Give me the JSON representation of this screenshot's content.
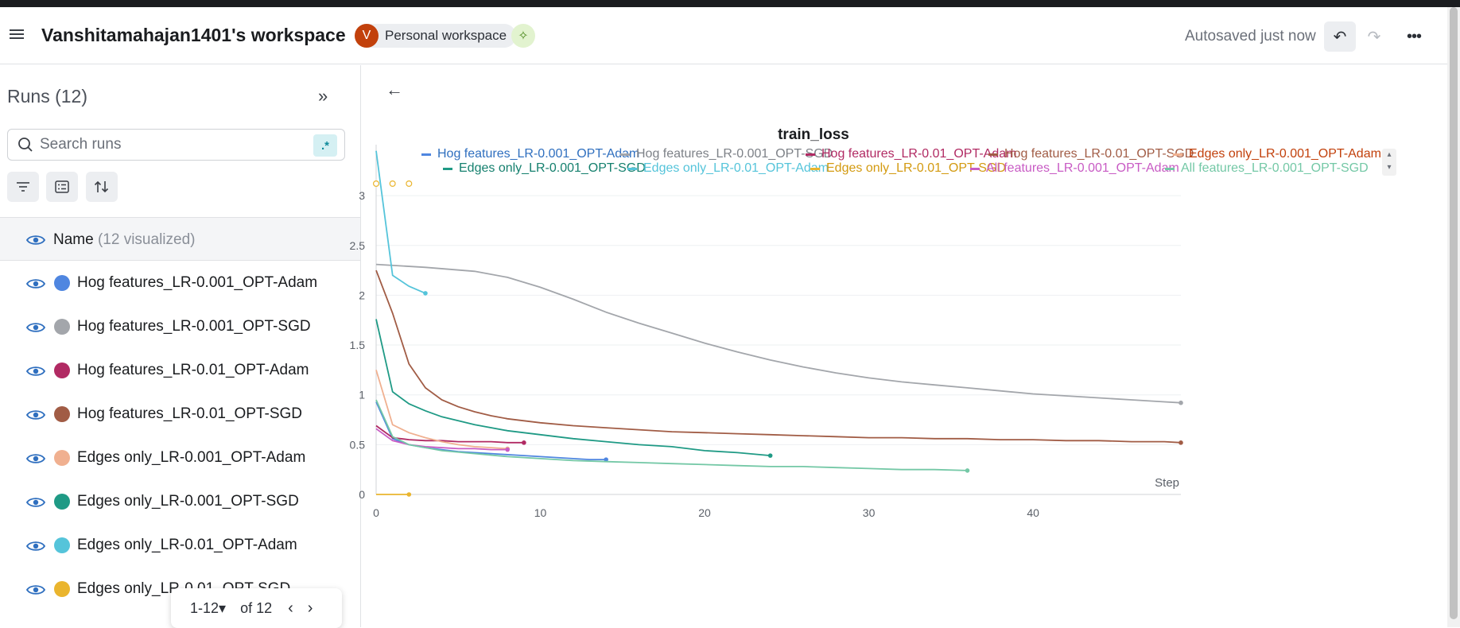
{
  "header": {
    "workspace_title": "Vanshitamahajan1401's workspace",
    "avatar_letter": "V",
    "workspace_chip": "Personal workspace",
    "autosave_status": "Autosaved just now",
    "accent_color": "#c2410c"
  },
  "sidebar": {
    "runs_title": "Runs (12)",
    "search_placeholder": "Search runs",
    "regex_label": ".*",
    "name_column": "Name",
    "name_visualized": "(12 visualized)",
    "runs": [
      {
        "name": "Hog features_LR-0.001_OPT-Adam",
        "color": "#4f86e0"
      },
      {
        "name": "Hog features_LR-0.001_OPT-SGD",
        "color": "#a3a6ab"
      },
      {
        "name": "Hog features_LR-0.01_OPT-Adam",
        "color": "#b12a63"
      },
      {
        "name": "Hog features_LR-0.01_OPT-SGD",
        "color": "#a15c45"
      },
      {
        "name": "Edges only_LR-0.001_OPT-Adam",
        "color": "#f0b090"
      },
      {
        "name": "Edges only_LR-0.001_OPT-SGD",
        "color": "#1f9a85"
      },
      {
        "name": "Edges only_LR-0.01_OPT-Adam",
        "color": "#55c4da"
      },
      {
        "name": "Edges only_LR-0.01_OPT-SGD",
        "color": "#eab52e"
      }
    ],
    "pager": {
      "range": "1-12",
      "of": "of 12"
    }
  },
  "chart_data": {
    "type": "line",
    "title": "train_loss",
    "xlabel": "Step",
    "ylabel": "",
    "xlim": [
      0,
      49
    ],
    "ylim": [
      0,
      3.4
    ],
    "x_ticks": [
      0,
      10,
      20,
      30,
      40
    ],
    "y_ticks": [
      0,
      0.5,
      1,
      1.5,
      2,
      2.5,
      3
    ],
    "grid": true,
    "legend_position": "top",
    "series": [
      {
        "name": "Hog features_LR-0.001_OPT-Adam",
        "color": "#4f86e0",
        "x": [
          0,
          1,
          2,
          3,
          4,
          5,
          6,
          7,
          8,
          9,
          10,
          11,
          12,
          13,
          14
        ],
        "y": [
          0.93,
          0.56,
          0.5,
          0.47,
          0.45,
          0.43,
          0.42,
          0.41,
          0.4,
          0.39,
          0.38,
          0.37,
          0.36,
          0.35,
          0.35
        ]
      },
      {
        "name": "Hog features_LR-0.001_OPT-SGD",
        "color": "#a3a6ab",
        "x": [
          0,
          3,
          6,
          8,
          10,
          12,
          14,
          16,
          18,
          20,
          22,
          24,
          26,
          28,
          30,
          32,
          34,
          36,
          38,
          40,
          42,
          44,
          46,
          48,
          49
        ],
        "y": [
          2.31,
          2.28,
          2.24,
          2.18,
          2.08,
          1.96,
          1.83,
          1.72,
          1.62,
          1.52,
          1.43,
          1.35,
          1.28,
          1.22,
          1.17,
          1.13,
          1.1,
          1.07,
          1.04,
          1.01,
          0.99,
          0.97,
          0.95,
          0.93,
          0.92
        ]
      },
      {
        "name": "Hog features_LR-0.01_OPT-Adam",
        "color": "#b12a63",
        "x": [
          0,
          1,
          2,
          3,
          4,
          5,
          6,
          7,
          8,
          9
        ],
        "y": [
          0.69,
          0.57,
          0.55,
          0.54,
          0.54,
          0.53,
          0.53,
          0.53,
          0.52,
          0.52
        ]
      },
      {
        "name": "Hog features_LR-0.01_OPT-SGD",
        "color": "#a15c45",
        "x": [
          0,
          1,
          2,
          3,
          4,
          5,
          6,
          7,
          8,
          9,
          10,
          12,
          14,
          16,
          18,
          20,
          22,
          24,
          26,
          28,
          30,
          32,
          34,
          36,
          38,
          40,
          42,
          44,
          46,
          48,
          49
        ],
        "y": [
          2.25,
          1.82,
          1.31,
          1.07,
          0.95,
          0.88,
          0.83,
          0.79,
          0.76,
          0.74,
          0.72,
          0.69,
          0.67,
          0.65,
          0.63,
          0.62,
          0.61,
          0.6,
          0.59,
          0.58,
          0.57,
          0.57,
          0.56,
          0.56,
          0.55,
          0.55,
          0.54,
          0.54,
          0.53,
          0.53,
          0.52
        ]
      },
      {
        "name": "Edges only_LR-0.001_OPT-Adam",
        "color": "#f0b090",
        "x": [
          0,
          1,
          2,
          3,
          4,
          5,
          6,
          7,
          8
        ],
        "y": [
          1.25,
          0.7,
          0.62,
          0.57,
          0.53,
          0.5,
          0.48,
          0.47,
          0.46
        ]
      },
      {
        "name": "Edges only_LR-0.001_OPT-SGD",
        "color": "#1f9a85",
        "x": [
          0,
          1,
          2,
          3,
          4,
          5,
          6,
          8,
          10,
          12,
          14,
          16,
          18,
          20,
          22,
          24
        ],
        "y": [
          1.76,
          1.03,
          0.91,
          0.84,
          0.78,
          0.74,
          0.7,
          0.64,
          0.6,
          0.56,
          0.53,
          0.5,
          0.48,
          0.44,
          0.42,
          0.39
        ]
      },
      {
        "name": "Edges only_LR-0.01_OPT-Adam",
        "color": "#55c4da",
        "x": [
          0,
          1,
          2,
          3
        ],
        "y": [
          3.45,
          2.2,
          2.09,
          2.02
        ]
      },
      {
        "name": "Edges only_LR-0.01_OPT-SGD",
        "color": "#eab52e",
        "x": [
          0,
          1,
          2
        ],
        "y": [
          0,
          0,
          0
        ]
      },
      {
        "name": "All features_LR-0.001_OPT-Adam",
        "color": "#c85bc4",
        "x": [
          0,
          1,
          2,
          3,
          4,
          5,
          6,
          7,
          8
        ],
        "y": [
          0.66,
          0.54,
          0.5,
          0.48,
          0.47,
          0.46,
          0.46,
          0.45,
          0.45
        ]
      },
      {
        "name": "All features_LR-0.001_OPT-SGD",
        "color": "#74c8a6",
        "x": [
          0,
          1,
          2,
          4,
          6,
          8,
          10,
          12,
          14,
          16,
          18,
          20,
          22,
          24,
          26,
          28,
          30,
          32,
          34,
          36
        ],
        "y": [
          0.95,
          0.58,
          0.5,
          0.44,
          0.41,
          0.38,
          0.36,
          0.34,
          0.33,
          0.32,
          0.31,
          0.3,
          0.29,
          0.28,
          0.28,
          0.27,
          0.26,
          0.25,
          0.25,
          0.24
        ]
      }
    ],
    "overflow_markers": {
      "color": "#eab52e",
      "x": [
        0,
        1,
        2
      ]
    }
  }
}
